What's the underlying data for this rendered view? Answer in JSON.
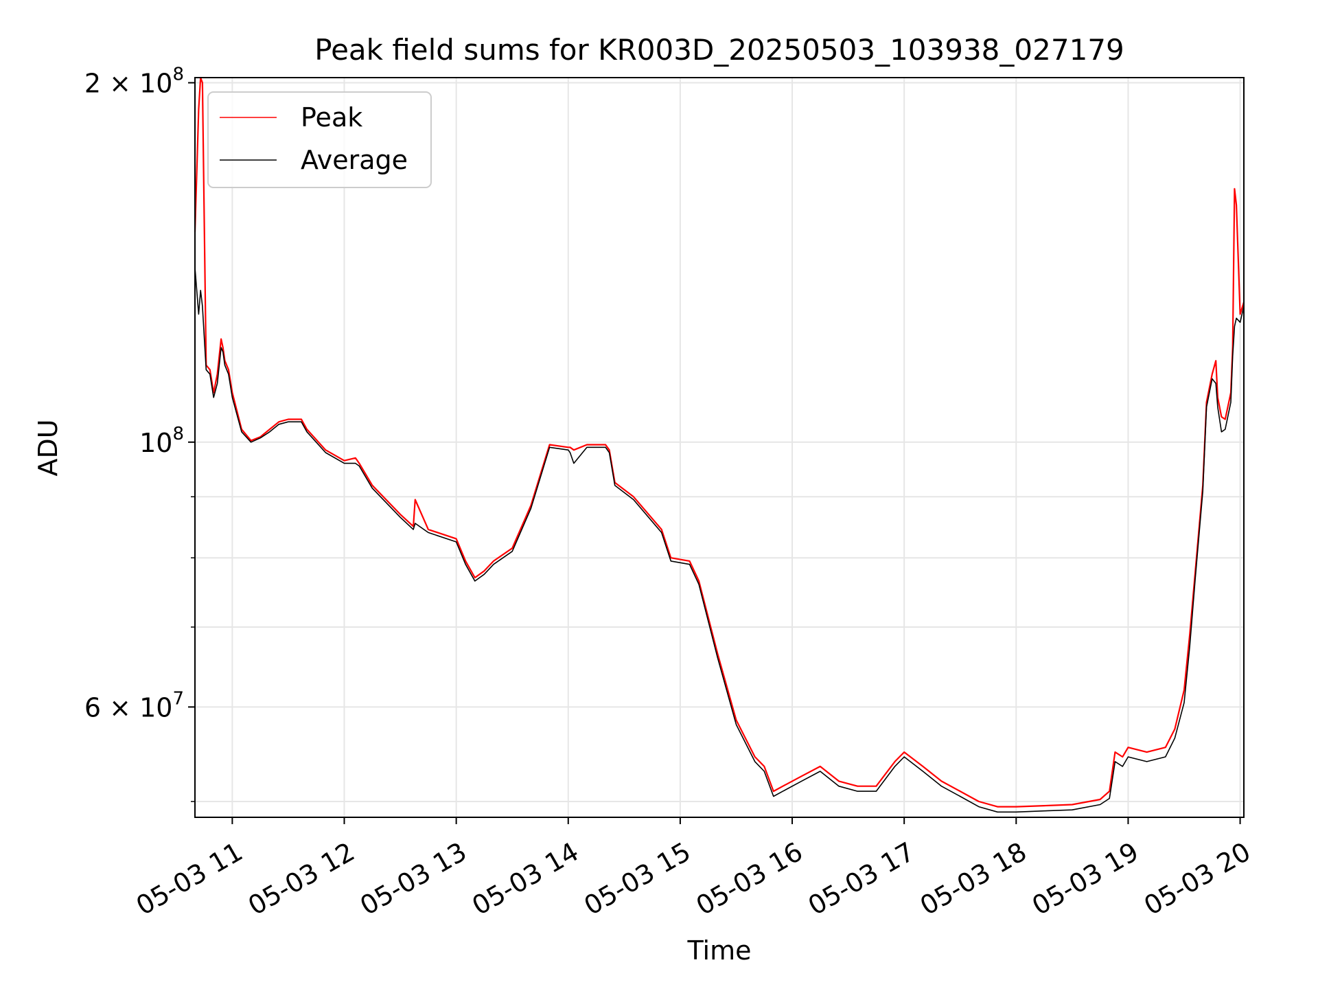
{
  "chart_data": {
    "type": "line",
    "title": "Peak field sums for KR003D_20250503_103938_027179",
    "xlabel": "Time",
    "ylabel": "ADU",
    "y_scale": "log",
    "ylim": [
      48500000,
      202000000
    ],
    "xlim": [
      "2025-05-03 10:40",
      "2025-05-03 20:02"
    ],
    "grid": true,
    "legend_position": "top-left",
    "x_ticks": [
      {
        "value": "2025-05-03 11:00",
        "label": "05-03 11"
      },
      {
        "value": "2025-05-03 12:00",
        "label": "05-03 12"
      },
      {
        "value": "2025-05-03 13:00",
        "label": "05-03 13"
      },
      {
        "value": "2025-05-03 14:00",
        "label": "05-03 14"
      },
      {
        "value": "2025-05-03 15:00",
        "label": "05-03 15"
      },
      {
        "value": "2025-05-03 16:00",
        "label": "05-03 16"
      },
      {
        "value": "2025-05-03 17:00",
        "label": "05-03 17"
      },
      {
        "value": "2025-05-03 18:00",
        "label": "05-03 18"
      },
      {
        "value": "2025-05-03 19:00",
        "label": "05-03 19"
      },
      {
        "value": "2025-05-03 20:00",
        "label": "05-03 20"
      }
    ],
    "y_major_ticks": [
      {
        "value": 200000000,
        "base": "2 × 10",
        "exp": "8"
      },
      {
        "value": 100000000,
        "base": "10",
        "exp": "8"
      },
      {
        "value": 60000000,
        "base": "6 × 10",
        "exp": "7"
      }
    ],
    "y_minor_ticks": [
      50000000,
      70000000,
      80000000,
      90000000
    ],
    "series": [
      {
        "name": "Peak",
        "color": "#ff0000",
        "x": [
          "2025-05-03 10:40",
          "2025-05-03 10:42",
          "2025-05-03 10:43",
          "2025-05-03 10:44",
          "2025-05-03 10:46",
          "2025-05-03 10:48",
          "2025-05-03 10:50",
          "2025-05-03 10:52",
          "2025-05-03 10:54",
          "2025-05-03 10:55",
          "2025-05-03 10:56",
          "2025-05-03 10:58",
          "2025-05-03 11:00",
          "2025-05-03 11:05",
          "2025-05-03 11:10",
          "2025-05-03 11:15",
          "2025-05-03 11:20",
          "2025-05-03 11:25",
          "2025-05-03 11:30",
          "2025-05-03 11:37",
          "2025-05-03 11:40",
          "2025-05-03 11:50",
          "2025-05-03 12:00",
          "2025-05-03 12:06",
          "2025-05-03 12:08",
          "2025-05-03 12:15",
          "2025-05-03 12:30",
          "2025-05-03 12:37",
          "2025-05-03 12:38",
          "2025-05-03 12:45",
          "2025-05-03 13:00",
          "2025-05-03 13:05",
          "2025-05-03 13:10",
          "2025-05-03 13:15",
          "2025-05-03 13:20",
          "2025-05-03 13:30",
          "2025-05-03 13:40",
          "2025-05-03 13:50",
          "2025-05-03 14:00",
          "2025-05-03 14:01",
          "2025-05-03 14:03",
          "2025-05-03 14:10",
          "2025-05-03 14:20",
          "2025-05-03 14:22",
          "2025-05-03 14:25",
          "2025-05-03 14:35",
          "2025-05-03 14:50",
          "2025-05-03 14:55",
          "2025-05-03 15:05",
          "2025-05-03 15:10",
          "2025-05-03 15:20",
          "2025-05-03 15:30",
          "2025-05-03 15:40",
          "2025-05-03 15:45",
          "2025-05-03 15:50",
          "2025-05-03 15:55",
          "2025-05-03 16:05",
          "2025-05-03 16:15",
          "2025-05-03 16:25",
          "2025-05-03 16:35",
          "2025-05-03 16:45",
          "2025-05-03 16:55",
          "2025-05-03 17:00",
          "2025-05-03 17:10",
          "2025-05-03 17:20",
          "2025-05-03 17:30",
          "2025-05-03 17:40",
          "2025-05-03 17:50",
          "2025-05-03 18:00",
          "2025-05-03 18:15",
          "2025-05-03 18:30",
          "2025-05-03 18:45",
          "2025-05-03 18:50",
          "2025-05-03 18:53",
          "2025-05-03 18:57",
          "2025-05-03 19:00",
          "2025-05-03 19:10",
          "2025-05-03 19:20",
          "2025-05-03 19:25",
          "2025-05-03 19:30",
          "2025-05-03 19:33",
          "2025-05-03 19:36",
          "2025-05-03 19:40",
          "2025-05-03 19:42",
          "2025-05-03 19:45",
          "2025-05-03 19:47",
          "2025-05-03 19:48",
          "2025-05-03 19:50",
          "2025-05-03 19:52",
          "2025-05-03 19:55",
          "2025-05-03 19:56",
          "2025-05-03 19:57",
          "2025-05-03 19:58",
          "2025-05-03 20:00",
          "2025-05-03 20:02"
        ],
        "values": [
          150000000,
          190000000,
          202000000,
          200000000,
          116000000,
          115000000,
          110000000,
          114000000,
          122000000,
          120000000,
          117000000,
          115000000,
          110000000,
          102500000,
          100300000,
          101000000,
          102500000,
          104000000,
          104500000,
          104500000,
          102500000,
          98500000,
          96500000,
          97000000,
          96000000,
          92000000,
          87000000,
          85000000,
          89500000,
          84500000,
          83000000,
          79500000,
          77000000,
          78000000,
          79500000,
          81500000,
          88500000,
          99500000,
          99000000,
          99000000,
          98500000,
          99500000,
          99500000,
          98500000,
          92500000,
          90000000,
          84500000,
          80000000,
          79500000,
          76500000,
          66500000,
          58500000,
          54500000,
          53500000,
          51000000,
          51500000,
          52500000,
          53500000,
          52000000,
          51500000,
          51500000,
          54000000,
          55000000,
          53500000,
          52000000,
          51000000,
          50000000,
          49500000,
          49500000,
          49600000,
          49700000,
          50200000,
          51000000,
          55000000,
          54500000,
          55500000,
          55000000,
          55500000,
          57500000,
          62000000,
          69000000,
          78000000,
          92000000,
          108000000,
          114000000,
          117000000,
          109000000,
          105000000,
          104500000,
          110000000,
          120000000,
          163000000,
          158000000,
          128000000,
          131000000
        ]
      },
      {
        "name": "Average",
        "color": "#000000",
        "x": [
          "2025-05-03 10:40",
          "2025-05-03 10:42",
          "2025-05-03 10:43",
          "2025-05-03 10:44",
          "2025-05-03 10:46",
          "2025-05-03 10:48",
          "2025-05-03 10:50",
          "2025-05-03 10:52",
          "2025-05-03 10:54",
          "2025-05-03 10:55",
          "2025-05-03 10:56",
          "2025-05-03 10:58",
          "2025-05-03 11:00",
          "2025-05-03 11:05",
          "2025-05-03 11:10",
          "2025-05-03 11:15",
          "2025-05-03 11:20",
          "2025-05-03 11:25",
          "2025-05-03 11:30",
          "2025-05-03 11:37",
          "2025-05-03 11:40",
          "2025-05-03 11:50",
          "2025-05-03 12:00",
          "2025-05-03 12:06",
          "2025-05-03 12:08",
          "2025-05-03 12:15",
          "2025-05-03 12:30",
          "2025-05-03 12:37",
          "2025-05-03 12:38",
          "2025-05-03 12:45",
          "2025-05-03 13:00",
          "2025-05-03 13:05",
          "2025-05-03 13:10",
          "2025-05-03 13:15",
          "2025-05-03 13:20",
          "2025-05-03 13:30",
          "2025-05-03 13:40",
          "2025-05-03 13:50",
          "2025-05-03 14:00",
          "2025-05-03 14:01",
          "2025-05-03 14:03",
          "2025-05-03 14:10",
          "2025-05-03 14:20",
          "2025-05-03 14:22",
          "2025-05-03 14:25",
          "2025-05-03 14:35",
          "2025-05-03 14:50",
          "2025-05-03 14:55",
          "2025-05-03 15:05",
          "2025-05-03 15:10",
          "2025-05-03 15:20",
          "2025-05-03 15:30",
          "2025-05-03 15:40",
          "2025-05-03 15:45",
          "2025-05-03 15:50",
          "2025-05-03 15:55",
          "2025-05-03 16:05",
          "2025-05-03 16:15",
          "2025-05-03 16:25",
          "2025-05-03 16:35",
          "2025-05-03 16:45",
          "2025-05-03 16:55",
          "2025-05-03 17:00",
          "2025-05-03 17:10",
          "2025-05-03 17:20",
          "2025-05-03 17:30",
          "2025-05-03 17:40",
          "2025-05-03 17:50",
          "2025-05-03 18:00",
          "2025-05-03 18:15",
          "2025-05-03 18:30",
          "2025-05-03 18:45",
          "2025-05-03 18:50",
          "2025-05-03 18:53",
          "2025-05-03 18:57",
          "2025-05-03 19:00",
          "2025-05-03 19:10",
          "2025-05-03 19:20",
          "2025-05-03 19:25",
          "2025-05-03 19:30",
          "2025-05-03 19:33",
          "2025-05-03 19:36",
          "2025-05-03 19:40",
          "2025-05-03 19:42",
          "2025-05-03 19:45",
          "2025-05-03 19:47",
          "2025-05-03 19:48",
          "2025-05-03 19:50",
          "2025-05-03 19:52",
          "2025-05-03 19:55",
          "2025-05-03 19:56",
          "2025-05-03 19:57",
          "2025-05-03 19:58",
          "2025-05-03 20:00",
          "2025-05-03 20:02"
        ],
        "values": [
          140000000,
          128000000,
          134000000,
          130000000,
          115000000,
          114000000,
          109000000,
          112000000,
          120000000,
          119000000,
          116000000,
          114000000,
          109000000,
          102000000,
          100000000,
          100800000,
          102000000,
          103500000,
          104000000,
          104000000,
          102000000,
          98000000,
          96000000,
          96000000,
          95500000,
          91500000,
          86500000,
          84500000,
          85500000,
          84000000,
          82500000,
          79000000,
          76500000,
          77500000,
          79000000,
          81000000,
          88000000,
          99000000,
          98500000,
          98000000,
          96000000,
          99000000,
          99000000,
          98000000,
          92000000,
          89500000,
          84000000,
          79500000,
          79000000,
          76000000,
          66000000,
          58000000,
          54000000,
          53000000,
          50500000,
          51000000,
          52000000,
          53000000,
          51500000,
          51000000,
          51000000,
          53500000,
          54500000,
          53000000,
          51500000,
          50500000,
          49500000,
          49000000,
          49000000,
          49100000,
          49200000,
          49700000,
          50300000,
          54000000,
          53500000,
          54500000,
          54000000,
          54500000,
          56500000,
          60500000,
          67500000,
          77000000,
          91000000,
          107000000,
          113000000,
          112000000,
          107000000,
          102000000,
          102500000,
          108000000,
          118000000,
          125000000,
          127000000,
          126000000,
          130000000
        ]
      }
    ]
  }
}
